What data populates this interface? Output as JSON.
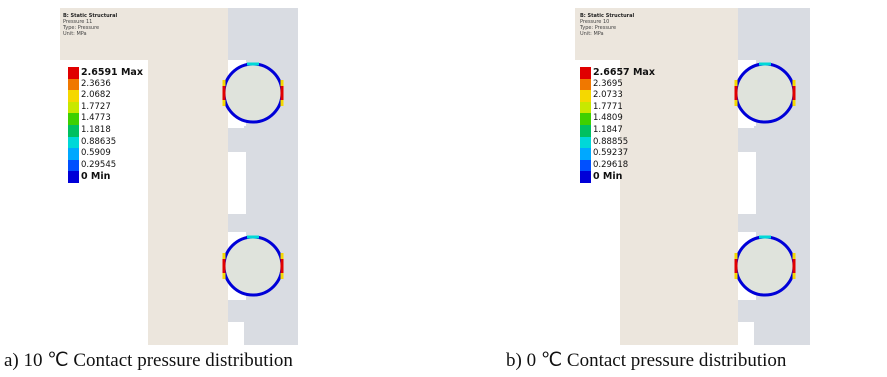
{
  "figures": [
    {
      "header": {
        "title": "B: Static Structural",
        "result": "Pressure 11",
        "type": "Type: Pressure",
        "unit": "Unit: MPa"
      },
      "legend": [
        {
          "label": "2.6591 Max",
          "color": "#e00000"
        },
        {
          "label": "2.3636",
          "color": "#f07800"
        },
        {
          "label": "2.0682",
          "color": "#f5d800"
        },
        {
          "label": "1.7727",
          "color": "#c8e800"
        },
        {
          "label": "1.4773",
          "color": "#3ed000"
        },
        {
          "label": "1.1818",
          "color": "#00c060"
        },
        {
          "label": "0.88635",
          "color": "#00d8d8"
        },
        {
          "label": "0.5909",
          "color": "#00a8ff"
        },
        {
          "label": "0.29545",
          "color": "#0050ff"
        },
        {
          "label": "0 Min",
          "color": "#0000d8"
        }
      ],
      "caption": "a) 10 ℃ Contact pressure distribution"
    },
    {
      "header": {
        "title": "B: Static Structural",
        "result": "Pressure 10",
        "type": "Type: Pressure",
        "unit": "Unit: MPa"
      },
      "legend": [
        {
          "label": "2.6657 Max",
          "color": "#e00000"
        },
        {
          "label": "2.3695",
          "color": "#f07800"
        },
        {
          "label": "2.0733",
          "color": "#f5d800"
        },
        {
          "label": "1.7771",
          "color": "#c8e800"
        },
        {
          "label": "1.4809",
          "color": "#3ed000"
        },
        {
          "label": "1.1847",
          "color": "#00c060"
        },
        {
          "label": "0.88855",
          "color": "#00d8d8"
        },
        {
          "label": "0.59237",
          "color": "#00a8ff"
        },
        {
          "label": "0.29618",
          "color": "#0050ff"
        },
        {
          "label": "0 Min",
          "color": "#0000d8"
        }
      ],
      "caption": "b) 0 ℃ Contact pressure distribution"
    }
  ],
  "colors": {
    "piston": "#ece6dd",
    "housing": "#d9dce2",
    "gap": "#ffffff",
    "ring_body": "#dfe3dc",
    "ring_low": "#0000d8",
    "ring_high": "#e00000"
  }
}
